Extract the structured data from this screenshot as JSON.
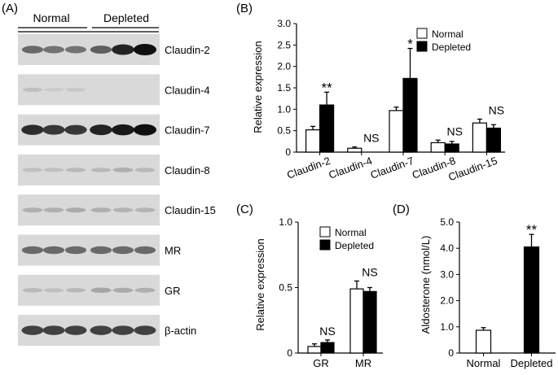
{
  "panel_labels": {
    "a": "(A)",
    "b": "(B)",
    "c": "(C)",
    "d": "(D)"
  },
  "blot": {
    "groups": [
      "Normal",
      "Depleted"
    ],
    "bands": [
      {
        "name": "Claudin-2",
        "intensity": [
          0.55,
          0.5,
          0.5,
          0.6,
          0.9,
          1.0
        ]
      },
      {
        "name": "Claudin-4",
        "intensity": [
          0.12,
          0.06,
          0.08,
          0.0,
          0.0,
          0.0
        ]
      },
      {
        "name": "Claudin-7",
        "intensity": [
          0.85,
          0.8,
          0.8,
          0.9,
          0.95,
          1.0
        ]
      },
      {
        "name": "Claudin-8",
        "intensity": [
          0.12,
          0.12,
          0.15,
          0.15,
          0.2,
          0.15
        ]
      },
      {
        "name": "Claudin-15",
        "intensity": [
          0.2,
          0.2,
          0.22,
          0.2,
          0.18,
          0.18
        ]
      },
      {
        "name": "MR",
        "intensity": [
          0.55,
          0.55,
          0.55,
          0.55,
          0.55,
          0.55
        ]
      },
      {
        "name": "GR",
        "intensity": [
          0.15,
          0.12,
          0.15,
          0.25,
          0.22,
          0.2
        ]
      },
      {
        "name": "β-actin",
        "intensity": [
          0.75,
          0.75,
          0.75,
          0.75,
          0.75,
          0.75
        ]
      }
    ]
  },
  "legend": {
    "normal": "Normal",
    "depleted": "Depleted"
  },
  "colors": {
    "normal": "#ffffff",
    "depleted": "#000000",
    "blot_bg": "#d9d9d9"
  },
  "chart_data": [
    {
      "panel": "(B)",
      "type": "bar",
      "ylabel": "Relative expression",
      "ylim": [
        0,
        3.0
      ],
      "yticks": [
        "0",
        "0.5",
        "1.0",
        "1.5",
        "2.0",
        "2.5",
        "3.0"
      ],
      "categories": [
        "Claudin-2",
        "Claudin-4",
        "Claudin-7",
        "Claudin-8",
        "Claudin-15"
      ],
      "series": [
        {
          "name": "Normal",
          "values": [
            0.52,
            0.09,
            0.97,
            0.22,
            0.68
          ],
          "errors": [
            0.08,
            0.03,
            0.08,
            0.06,
            0.09
          ]
        },
        {
          "name": "Depleted",
          "values": [
            1.1,
            0.0,
            1.72,
            0.19,
            0.56
          ],
          "errors": [
            0.3,
            0.0,
            0.7,
            0.06,
            0.08
          ]
        }
      ],
      "annotations": [
        "**",
        "NS",
        "*",
        "NS",
        "NS"
      ]
    },
    {
      "panel": "(C)",
      "type": "bar",
      "ylabel": "Relative expression",
      "ylim": [
        0,
        1.0
      ],
      "yticks": [
        "0",
        "0.5",
        "1.0"
      ],
      "categories": [
        "GR",
        "MR"
      ],
      "series": [
        {
          "name": "Normal",
          "values": [
            0.05,
            0.49
          ],
          "errors": [
            0.02,
            0.06
          ]
        },
        {
          "name": "Depleted",
          "values": [
            0.08,
            0.47
          ],
          "errors": [
            0.02,
            0.03
          ]
        }
      ],
      "annotations": [
        "NS",
        "NS"
      ]
    },
    {
      "panel": "(D)",
      "type": "bar",
      "ylabel": "Aldosterone  (nmol/L)",
      "ylim": [
        0,
        5.0
      ],
      "yticks": [
        "0",
        "1.0",
        "2.0",
        "3.0",
        "4.0",
        "5.0"
      ],
      "categories": [
        "Normal",
        "Depleted"
      ],
      "values": [
        0.87,
        4.05
      ],
      "errors": [
        0.1,
        0.48
      ],
      "annotations": [
        "",
        "**"
      ]
    }
  ]
}
